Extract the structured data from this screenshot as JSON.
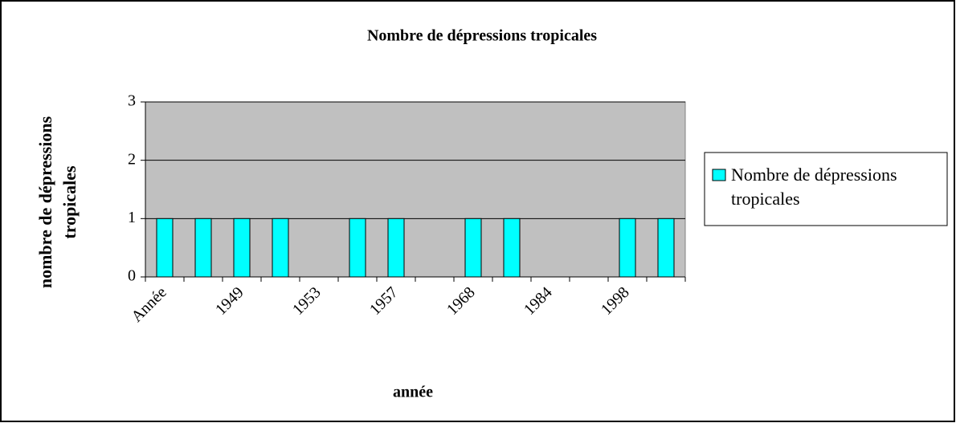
{
  "chart_data": {
    "type": "bar",
    "title": "Nombre de dépressions tropicales",
    "x_label": "année",
    "y_label": "nombre de dépressions tropicales",
    "categories": [
      "Année",
      null,
      "1949",
      null,
      "1953",
      null,
      "1957",
      null,
      "1968",
      null,
      "1984",
      null,
      "1998",
      null
    ],
    "series": [
      {
        "name": "Nombre de dépressions tropicales",
        "color": "#00ffff",
        "values": [
          1,
          1,
          1,
          1,
          0,
          1,
          1,
          0,
          1,
          1,
          0,
          0,
          1,
          1
        ]
      }
    ],
    "ylim": [
      0,
      3
    ],
    "yticks": [
      0,
      1,
      2,
      3
    ],
    "grid": true,
    "legend": "right"
  }
}
